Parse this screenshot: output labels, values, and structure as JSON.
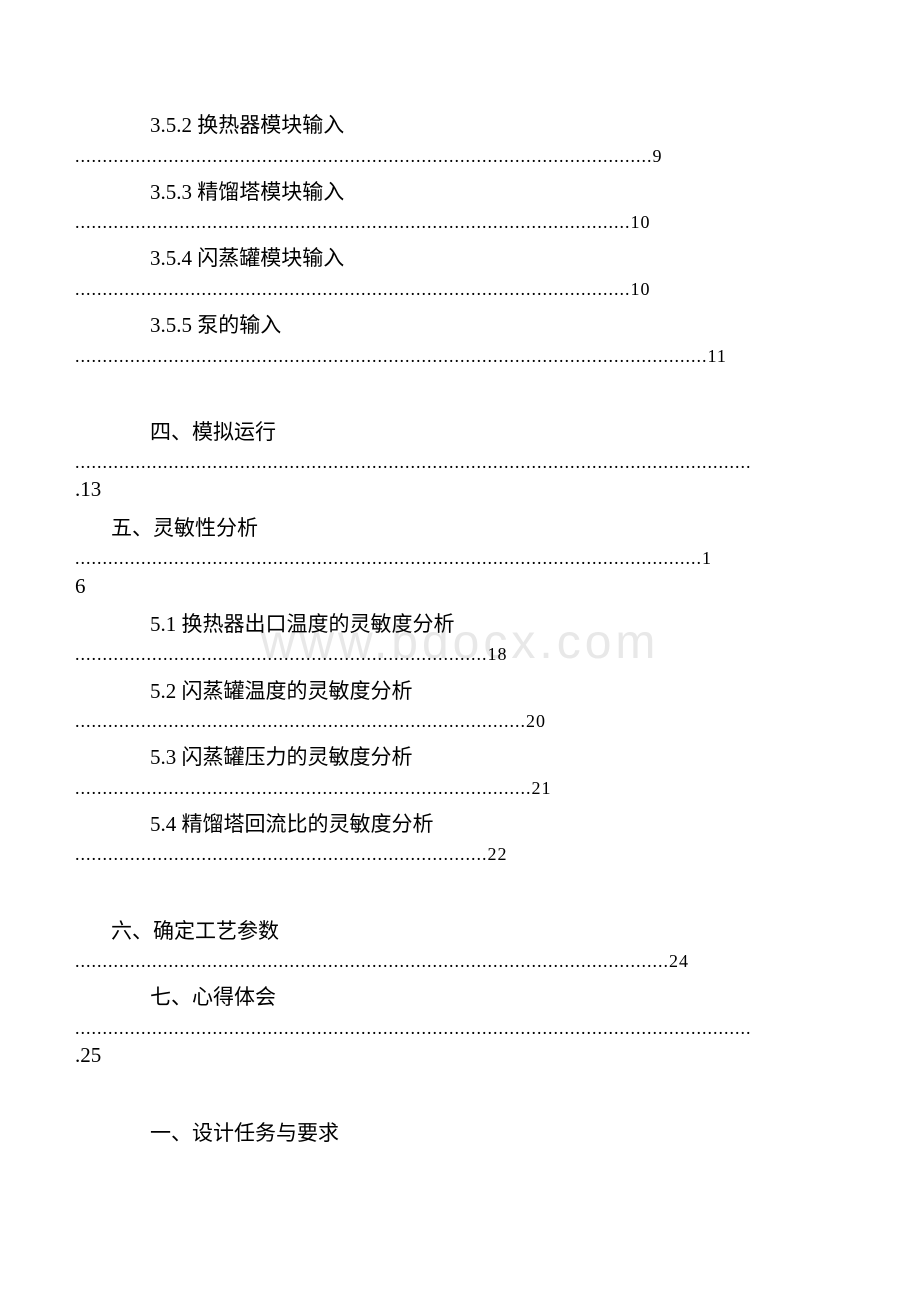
{
  "watermark": "www.bdocx.com",
  "toc": {
    "entries": [
      {
        "title": "3.5.2 换热器模块输入",
        "dots": ".........................................................................................................9",
        "indent": "sub",
        "continuation": null
      },
      {
        "title": "3.5.3 精馏塔模块输入",
        "dots": ".....................................................................................................10",
        "indent": "sub",
        "continuation": null
      },
      {
        "title": "3.5.4 闪蒸罐模块输入",
        "dots": ".....................................................................................................10",
        "indent": "sub",
        "continuation": null
      },
      {
        "title": "3.5.5 泵的输入",
        "dots": "...................................................................................................................11",
        "indent": "sub",
        "continuation": null
      },
      {
        "title": "四、模拟运行",
        "dots": "...........................................................................................................................",
        "indent": "sub",
        "continuation": ".13",
        "spacer_before": true
      },
      {
        "title": "五、灵敏性分析",
        "dots": "..................................................................................................................1",
        "indent": "main",
        "continuation": "6"
      },
      {
        "title": "5.1 换热器出口温度的灵敏度分析",
        "dots": "...........................................................................18",
        "indent": "sub",
        "continuation": null
      },
      {
        "title": "5.2 闪蒸罐温度的灵敏度分析",
        "dots": "..................................................................................20",
        "indent": "sub",
        "continuation": null
      },
      {
        "title": "5.3 闪蒸罐压力的灵敏度分析",
        "dots": "...................................................................................21",
        "indent": "sub",
        "continuation": null
      },
      {
        "title": "5.4 精馏塔回流比的灵敏度分析",
        "dots": "...........................................................................22",
        "indent": "sub",
        "continuation": null
      },
      {
        "title": "六、确定工艺参数",
        "dots": "............................................................................................................24",
        "indent": "main",
        "continuation": null,
        "spacer_before": true
      },
      {
        "title": "七、心得体会",
        "dots": "...........................................................................................................................",
        "indent": "sub",
        "continuation": ".25"
      },
      {
        "title": "一、设计任务与要求",
        "dots": null,
        "indent": "sub",
        "continuation": null,
        "spacer_before": true
      }
    ]
  }
}
